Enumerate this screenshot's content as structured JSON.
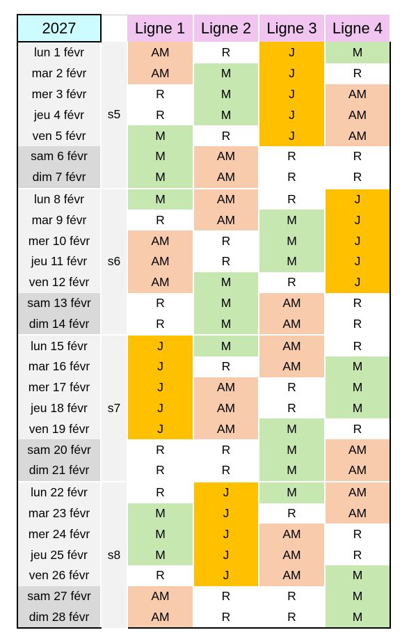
{
  "year": "2027",
  "lines": [
    "Ligne 1",
    "Ligne 2",
    "Ligne 3",
    "Ligne 4"
  ],
  "colors": {
    "AM": "#f8cbad",
    "M": "#c6e8b0",
    "J": "#ffc000",
    "R": "#ffffff",
    "header": "#f0c5f0",
    "year_cell": "#ccfcff",
    "weekend": "#d9d9d9",
    "weekday": "#f2f2f2"
  },
  "weeks": [
    {
      "label": "s5",
      "days": [
        {
          "date": "lun 1 févr",
          "shifts": [
            "AM",
            "R",
            "J",
            "M"
          ]
        },
        {
          "date": "mar 2 févr",
          "shifts": [
            "AM",
            "M",
            "J",
            "R"
          ]
        },
        {
          "date": "mer 3 févr",
          "shifts": [
            "R",
            "M",
            "J",
            "AM"
          ]
        },
        {
          "date": "jeu 4 févr",
          "shifts": [
            "R",
            "M",
            "J",
            "AM"
          ]
        },
        {
          "date": "ven 5 févr",
          "shifts": [
            "M",
            "R",
            "J",
            "AM"
          ]
        },
        {
          "date": "sam 6 févr",
          "shifts": [
            "M",
            "AM",
            "R",
            "R"
          ],
          "weekend": true
        },
        {
          "date": "dim 7 févr",
          "shifts": [
            "M",
            "AM",
            "R",
            "R"
          ],
          "weekend": true
        }
      ]
    },
    {
      "label": "s6",
      "days": [
        {
          "date": "lun 8 févr",
          "shifts": [
            "M",
            "AM",
            "R",
            "J"
          ]
        },
        {
          "date": "mar 9 févr",
          "shifts": [
            "R",
            "AM",
            "M",
            "J"
          ]
        },
        {
          "date": "mer 10 févr",
          "shifts": [
            "AM",
            "R",
            "M",
            "J"
          ]
        },
        {
          "date": "jeu 11 févr",
          "shifts": [
            "AM",
            "R",
            "M",
            "J"
          ]
        },
        {
          "date": "ven 12 févr",
          "shifts": [
            "AM",
            "M",
            "R",
            "J"
          ]
        },
        {
          "date": "sam 13 févr",
          "shifts": [
            "R",
            "M",
            "AM",
            "R"
          ],
          "weekend": true
        },
        {
          "date": "dim 14 févr",
          "shifts": [
            "R",
            "M",
            "AM",
            "R"
          ],
          "weekend": true
        }
      ]
    },
    {
      "label": "s7",
      "days": [
        {
          "date": "lun 15 févr",
          "shifts": [
            "J",
            "M",
            "AM",
            "R"
          ]
        },
        {
          "date": "mar 16 févr",
          "shifts": [
            "J",
            "R",
            "AM",
            "M"
          ]
        },
        {
          "date": "mer 17 févr",
          "shifts": [
            "J",
            "AM",
            "R",
            "M"
          ]
        },
        {
          "date": "jeu 18 févr",
          "shifts": [
            "J",
            "AM",
            "R",
            "M"
          ]
        },
        {
          "date": "ven 19 févr",
          "shifts": [
            "J",
            "AM",
            "M",
            "R"
          ]
        },
        {
          "date": "sam 20 févr",
          "shifts": [
            "R",
            "R",
            "M",
            "AM"
          ],
          "weekend": true
        },
        {
          "date": "dim 21 févr",
          "shifts": [
            "R",
            "R",
            "M",
            "AM"
          ],
          "weekend": true
        }
      ]
    },
    {
      "label": "s8",
      "days": [
        {
          "date": "lun 22 févr",
          "shifts": [
            "R",
            "J",
            "M",
            "AM"
          ]
        },
        {
          "date": "mar 23 févr",
          "shifts": [
            "M",
            "J",
            "R",
            "AM"
          ]
        },
        {
          "date": "mer 24 févr",
          "shifts": [
            "M",
            "J",
            "AM",
            "R"
          ]
        },
        {
          "date": "jeu 25 févr",
          "shifts": [
            "M",
            "J",
            "AM",
            "R"
          ]
        },
        {
          "date": "ven 26 févr",
          "shifts": [
            "R",
            "J",
            "AM",
            "M"
          ]
        },
        {
          "date": "sam 27 févr",
          "shifts": [
            "AM",
            "R",
            "R",
            "M"
          ],
          "weekend": true
        },
        {
          "date": "dim 28 févr",
          "shifts": [
            "AM",
            "R",
            "R",
            "M"
          ],
          "weekend": true
        }
      ]
    }
  ]
}
